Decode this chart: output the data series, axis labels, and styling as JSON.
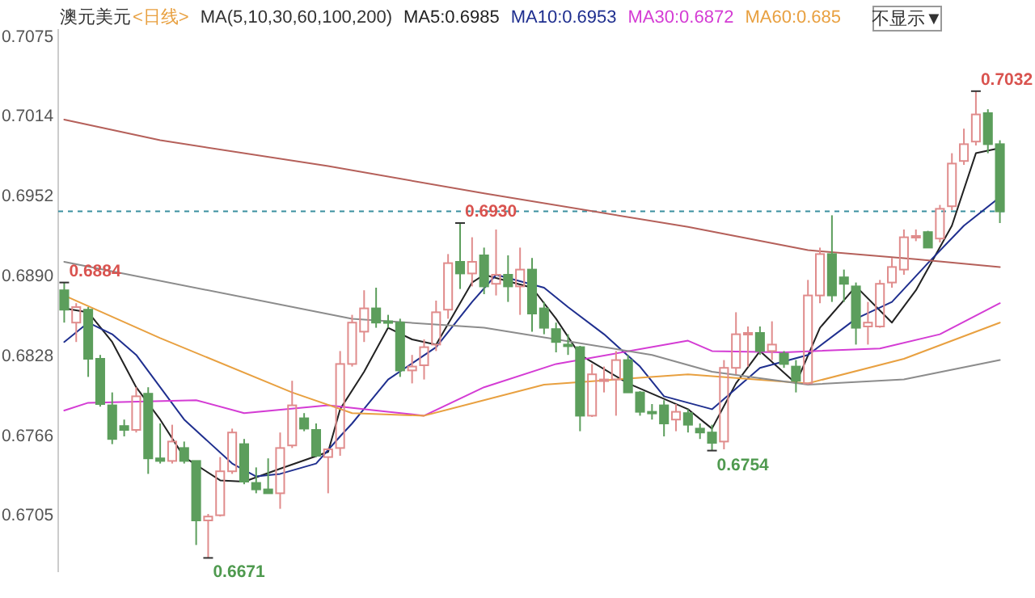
{
  "chart_data": {
    "type": "candlestick",
    "title": "澳元美元",
    "subtitle": "<日线>",
    "legend_title": "MA(5,10,30,60,100,200)",
    "legend": "top",
    "categories": [
      null,
      null,
      null,
      null,
      null,
      null,
      null,
      null,
      null,
      null,
      null,
      null,
      null,
      null,
      null,
      null,
      null,
      null,
      null,
      null,
      null,
      null,
      null,
      null,
      null,
      null,
      null,
      null,
      null,
      null,
      null,
      null,
      null,
      null,
      null,
      null,
      null,
      null,
      null,
      null,
      null,
      null,
      null,
      null,
      null,
      null,
      null,
      null,
      null,
      null,
      null,
      null,
      null,
      null,
      null,
      null,
      null,
      null,
      null,
      null,
      null,
      null,
      null,
      null,
      null,
      null,
      null,
      null,
      null,
      null,
      null,
      null,
      null,
      null,
      null,
      null,
      null,
      null,
      null
    ],
    "ohlc": [
      [
        0.6878,
        0.6884,
        0.6853,
        0.6863
      ],
      [
        0.6853,
        0.6868,
        0.6838,
        0.6865
      ],
      [
        0.6863,
        0.6865,
        0.6811,
        0.6825
      ],
      [
        0.6825,
        0.6828,
        0.6788,
        0.679
      ],
      [
        0.6789,
        0.6799,
        0.6759,
        0.6763
      ],
      [
        0.6773,
        0.6778,
        0.6765,
        0.677
      ],
      [
        0.677,
        0.6803,
        0.6768,
        0.6796
      ],
      [
        0.6798,
        0.6803,
        0.6736,
        0.6748
      ],
      [
        0.6748,
        0.6775,
        0.6744,
        0.6746
      ],
      [
        0.6746,
        0.6774,
        0.6744,
        0.6761
      ],
      [
        0.6756,
        0.6761,
        0.6744,
        0.6746
      ],
      [
        0.6746,
        0.6746,
        0.6681,
        0.67
      ],
      [
        0.67,
        0.6705,
        0.6671,
        0.6703
      ],
      [
        0.6704,
        0.6749,
        0.6703,
        0.6738
      ],
      [
        0.6738,
        0.6771,
        0.6736,
        0.6768
      ],
      [
        0.6759,
        0.6763,
        0.6728,
        0.673
      ],
      [
        0.6729,
        0.6741,
        0.6721,
        0.6724
      ],
      [
        0.6724,
        0.6748,
        0.6721,
        0.6721
      ],
      [
        0.6721,
        0.6768,
        0.6709,
        0.6756
      ],
      [
        0.6758,
        0.6808,
        0.6756,
        0.6789
      ],
      [
        0.6779,
        0.6783,
        0.6769,
        0.6771
      ],
      [
        0.677,
        0.6775,
        0.6749,
        0.675
      ],
      [
        0.6749,
        0.6756,
        0.6721,
        0.6755
      ],
      [
        0.6756,
        0.6831,
        0.675,
        0.6821
      ],
      [
        0.6821,
        0.6859,
        0.6819,
        0.6853
      ],
      [
        0.6846,
        0.6878,
        0.6838,
        0.6864
      ],
      [
        0.6864,
        0.688,
        0.6849,
        0.6853
      ],
      [
        0.6854,
        0.6859,
        0.6849,
        0.6853
      ],
      [
        0.6853,
        0.6856,
        0.6811,
        0.6816
      ],
      [
        0.6816,
        0.6828,
        0.6806,
        0.6819
      ],
      [
        0.682,
        0.684,
        0.6809,
        0.6834
      ],
      [
        0.6836,
        0.687,
        0.6831,
        0.6861
      ],
      [
        0.6863,
        0.6906,
        0.6856,
        0.6899
      ],
      [
        0.69,
        0.693,
        0.6879,
        0.6891
      ],
      [
        0.6891,
        0.6919,
        0.6881,
        0.69
      ],
      [
        0.6905,
        0.6911,
        0.6875,
        0.6881
      ],
      [
        0.6883,
        0.6925,
        0.6874,
        0.689
      ],
      [
        0.689,
        0.6905,
        0.6869,
        0.6881
      ],
      [
        0.6881,
        0.6911,
        0.6859,
        0.6894
      ],
      [
        0.6894,
        0.6903,
        0.6846,
        0.686
      ],
      [
        0.6864,
        0.6869,
        0.6844,
        0.6849
      ],
      [
        0.6848,
        0.6853,
        0.683,
        0.6838
      ],
      [
        0.6836,
        0.6844,
        0.6828,
        0.6835
      ],
      [
        0.6834,
        0.6835,
        0.6769,
        0.6781
      ],
      [
        0.6781,
        0.6821,
        0.678,
        0.6813
      ],
      [
        0.6808,
        0.6819,
        0.6799,
        0.6809
      ],
      [
        0.6809,
        0.6831,
        0.6781,
        0.6824
      ],
      [
        0.6824,
        0.6828,
        0.6799,
        0.6799
      ],
      [
        0.6799,
        0.68,
        0.6781,
        0.6784
      ],
      [
        0.6784,
        0.679,
        0.6778,
        0.6783
      ],
      [
        0.6789,
        0.6793,
        0.6765,
        0.6775
      ],
      [
        0.6778,
        0.679,
        0.6769,
        0.6784
      ],
      [
        0.6783,
        0.6786,
        0.6768,
        0.6774
      ],
      [
        0.6771,
        0.6775,
        0.6763,
        0.6768
      ],
      [
        0.6768,
        0.6774,
        0.6754,
        0.676
      ],
      [
        0.6761,
        0.6824,
        0.6755,
        0.6818
      ],
      [
        0.6818,
        0.6861,
        0.6813,
        0.6844
      ],
      [
        0.6844,
        0.685,
        0.6819,
        0.6845
      ],
      [
        0.6845,
        0.685,
        0.6828,
        0.6831
      ],
      [
        0.6831,
        0.6854,
        0.6824,
        0.6836
      ],
      [
        0.6829,
        0.6831,
        0.6818,
        0.6821
      ],
      [
        0.6819,
        0.6824,
        0.6799,
        0.6808
      ],
      [
        0.6806,
        0.6886,
        0.6805,
        0.6874
      ],
      [
        0.6874,
        0.6911,
        0.6868,
        0.6906
      ],
      [
        0.6906,
        0.6936,
        0.6869,
        0.6874
      ],
      [
        0.6888,
        0.6894,
        0.6869,
        0.6883
      ],
      [
        0.6881,
        0.6884,
        0.6836,
        0.6849
      ],
      [
        0.685,
        0.6869,
        0.6836,
        0.6853
      ],
      [
        0.685,
        0.6886,
        0.6849,
        0.6883
      ],
      [
        0.6884,
        0.6903,
        0.688,
        0.6896
      ],
      [
        0.6894,
        0.6925,
        0.689,
        0.6919
      ],
      [
        0.6919,
        0.6925,
        0.6916,
        0.692
      ],
      [
        0.6923,
        0.6924,
        0.6911,
        0.6911
      ],
      [
        0.6918,
        0.6944,
        0.6915,
        0.6941
      ],
      [
        0.6943,
        0.6984,
        0.694,
        0.6976
      ],
      [
        0.6978,
        0.7003,
        0.6975,
        0.6991
      ],
      [
        0.6993,
        0.7032,
        0.699,
        0.7014
      ],
      [
        0.7015,
        0.7018,
        0.6984,
        0.6991
      ],
      [
        0.6991,
        0.6994,
        0.693,
        0.6939
      ]
    ],
    "series": [
      {
        "type": "line",
        "name": "MA5:0.6985",
        "color": "#222222",
        "values": [
          0.6864,
          null,
          0.6861,
          null,
          0.6838,
          null,
          0.6803,
          null,
          0.6778,
          null,
          0.6749,
          null,
          null,
          0.6731,
          null,
          0.673,
          null,
          null,
          0.674,
          null,
          null,
          null,
          0.6753,
          0.6786,
          null,
          0.6815,
          null,
          0.6849,
          null,
          0.684,
          null,
          0.6836,
          null,
          null,
          0.6884,
          0.689,
          null,
          null,
          null,
          0.688,
          null,
          0.6856,
          null,
          0.6828,
          null,
          null,
          null,
          0.6806,
          null,
          null,
          null,
          null,
          0.6786,
          null,
          0.6771,
          null,
          0.6806,
          null,
          0.6831,
          null,
          null,
          0.6806,
          null,
          0.6849,
          null,
          null,
          0.6881,
          null,
          null,
          0.6853,
          null,
          0.6878,
          null,
          null,
          0.6928,
          null,
          0.6984,
          null,
          0.6988
        ]
      },
      {
        "type": "line",
        "name": "MA10:0.6953",
        "color": "#1f2f8f",
        "values": [
          0.6838,
          null,
          0.6853,
          null,
          0.6844,
          null,
          0.6828,
          null,
          0.6803,
          null,
          0.6778,
          null,
          null,
          null,
          0.6744,
          null,
          0.6734,
          null,
          0.6736,
          null,
          null,
          0.6744,
          null,
          0.6765,
          0.6775,
          null,
          null,
          0.6809,
          null,
          null,
          null,
          0.6834,
          null,
          null,
          0.6869,
          null,
          0.689,
          null,
          null,
          null,
          0.688,
          null,
          0.6865,
          null,
          null,
          0.6844,
          null,
          null,
          0.6819,
          null,
          0.6796,
          null,
          null,
          null,
          0.6786,
          null,
          null,
          null,
          0.6818,
          null,
          null,
          null,
          0.6828,
          null,
          null,
          null,
          0.6856,
          null,
          null,
          0.6869,
          null,
          null,
          0.6899,
          null,
          null,
          0.6928,
          null,
          null,
          0.695
        ]
      },
      {
        "type": "line",
        "name": "MA30:0.6872",
        "color": "#d43cd4",
        "values": [
          0.6785,
          null,
          0.6791,
          null,
          null,
          null,
          null,
          null,
          null,
          null,
          null,
          0.6793,
          null,
          null,
          null,
          0.6783,
          null,
          null,
          null,
          null,
          null,
          null,
          0.6789,
          null,
          null,
          null,
          null,
          null,
          null,
          null,
          0.6781,
          null,
          null,
          null,
          null,
          0.6803,
          null,
          null,
          null,
          null,
          null,
          0.6821,
          null,
          null,
          null,
          null,
          null,
          null,
          null,
          null,
          null,
          null,
          0.6839,
          null,
          0.6831,
          null,
          null,
          null,
          null,
          null,
          0.683,
          null,
          null,
          null,
          null,
          null,
          null,
          null,
          0.6833,
          null,
          null,
          null,
          null,
          0.6844,
          null,
          null,
          null,
          null,
          0.6868
        ]
      },
      {
        "type": "line",
        "name": "MA60:0.685",
        "color": "#e8a040",
        "values": [
          0.6874,
          null,
          null,
          null,
          null,
          null,
          null,
          null,
          0.6841,
          null,
          null,
          null,
          null,
          null,
          null,
          null,
          null,
          null,
          null,
          0.6799,
          null,
          null,
          null,
          null,
          0.6783,
          null,
          null,
          null,
          null,
          null,
          0.6781,
          null,
          null,
          null,
          null,
          null,
          null,
          null,
          null,
          null,
          0.6805,
          null,
          null,
          null,
          null,
          null,
          null,
          null,
          null,
          null,
          null,
          null,
          0.6813,
          null,
          null,
          null,
          null,
          null,
          null,
          null,
          null,
          null,
          0.6806,
          null,
          null,
          null,
          null,
          null,
          null,
          null,
          0.6825,
          null,
          null,
          null,
          null,
          null,
          null,
          null,
          0.6853
        ]
      },
      {
        "type": "line",
        "color": "#8c8c8c",
        "values": [
          0.69,
          null,
          null,
          null,
          null,
          null,
          null,
          null,
          null,
          null,
          null,
          null,
          null,
          null,
          null,
          null,
          null,
          null,
          null,
          null,
          null,
          null,
          null,
          null,
          0.6856,
          null,
          null,
          null,
          null,
          null,
          null,
          null,
          null,
          null,
          null,
          0.6849,
          null,
          null,
          null,
          null,
          null,
          null,
          null,
          null,
          null,
          null,
          null,
          null,
          null,
          0.6828,
          null,
          null,
          null,
          null,
          0.6815,
          null,
          null,
          null,
          null,
          null,
          null,
          null,
          0.6805,
          null,
          null,
          null,
          null,
          null,
          null,
          null,
          0.6809,
          null,
          null,
          null,
          null,
          null,
          null,
          null,
          0.6824
        ]
      },
      {
        "type": "line",
        "color": "#b5605a",
        "values": [
          0.701,
          null,
          null,
          null,
          null,
          null,
          null,
          null,
          0.6994,
          null,
          null,
          null,
          null,
          null,
          null,
          null,
          null,
          null,
          null,
          null,
          null,
          null,
          0.6974,
          null,
          null,
          null,
          null,
          null,
          null,
          null,
          null,
          null,
          null,
          null,
          null,
          0.6953,
          null,
          null,
          null,
          null,
          null,
          null,
          null,
          null,
          null,
          null,
          null,
          null,
          null,
          null,
          null,
          null,
          0.6927,
          null,
          null,
          null,
          null,
          null,
          null,
          null,
          null,
          null,
          0.6909,
          null,
          null,
          null,
          null,
          null,
          null,
          null,
          null,
          0.6902,
          null,
          null,
          null,
          null,
          null,
          null,
          0.6896
        ]
      }
    ],
    "ylim": [
      0.666,
      0.708
    ],
    "yticks": [
      0.6705,
      0.6766,
      0.6828,
      {
        "value": 0.689,
        "label": "0.6890"
      },
      0.6952,
      0.7014,
      0.7075
    ],
    "ref_lines": [
      {
        "axis": "y",
        "value": 0.6939,
        "color": "#3a8fa0",
        "line_style": "dashed"
      }
    ],
    "annotations": [
      "0.7032",
      "0.6930",
      "0.6884",
      "0.6671",
      "0.6754",
      "不显示▼"
    ]
  }
}
